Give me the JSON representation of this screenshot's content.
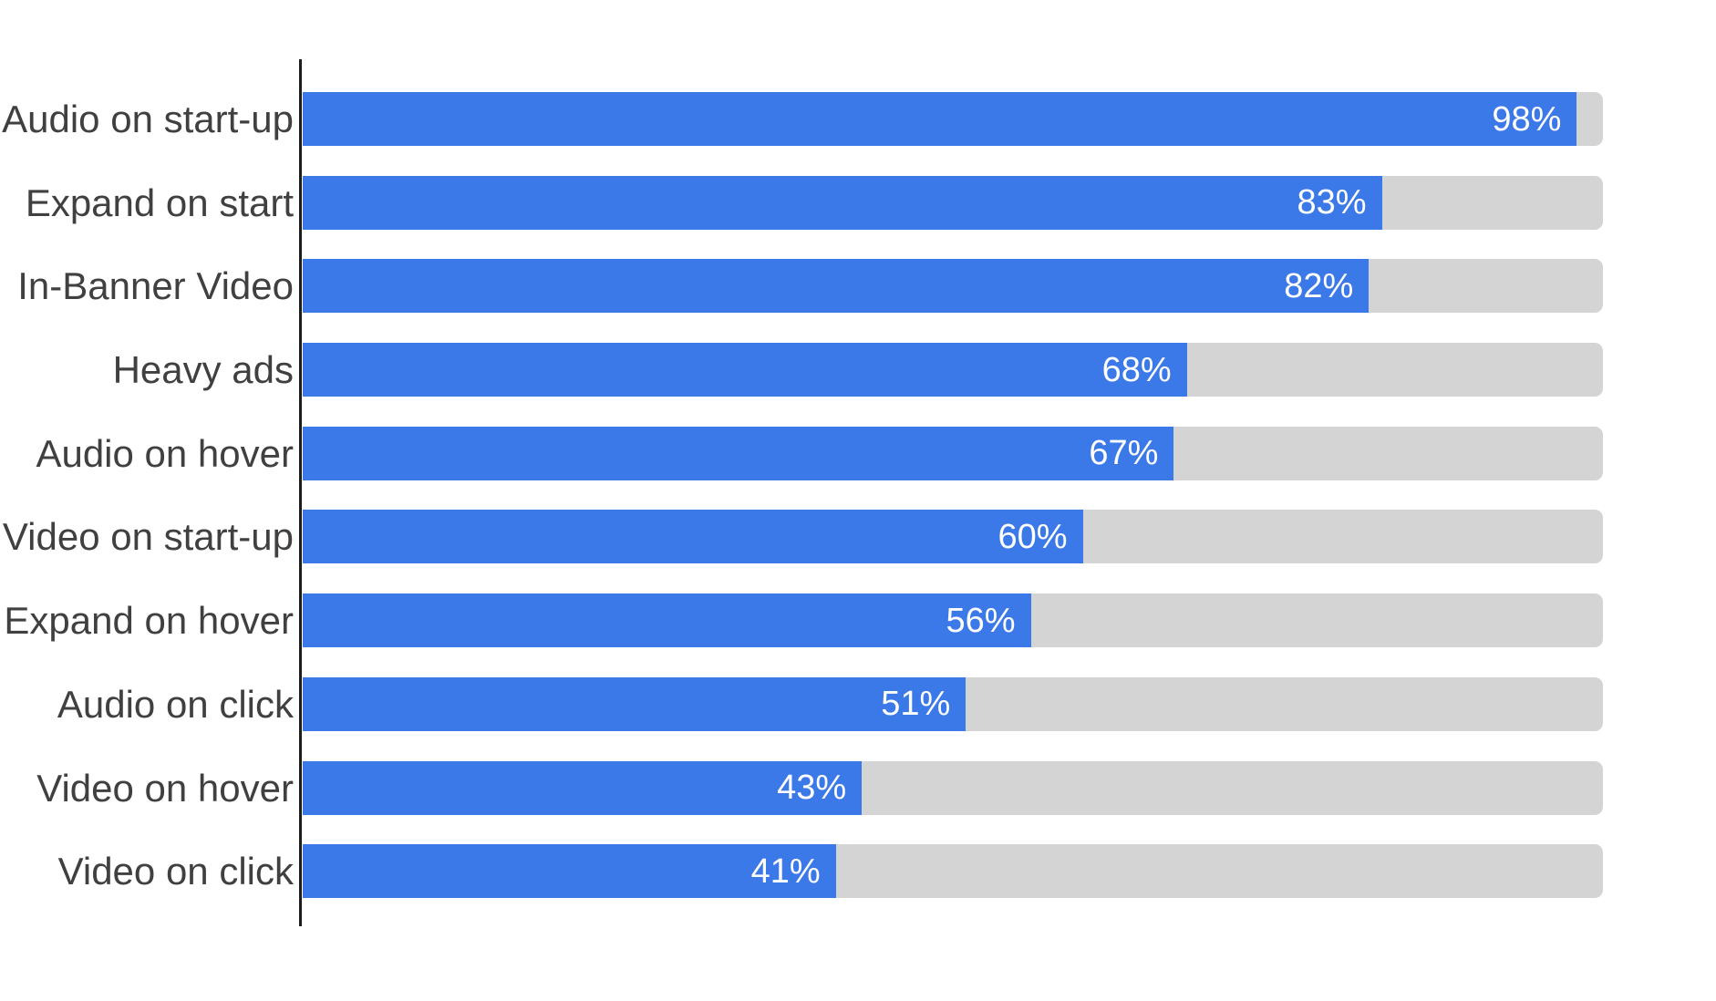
{
  "chart_data": {
    "type": "bar",
    "orientation": "horizontal",
    "title": "",
    "xlabel": "",
    "ylabel": "",
    "xlim": [
      0,
      100
    ],
    "grid": false,
    "legend": false,
    "categories": [
      "Audio on start-up",
      "Expand on start",
      "In-Banner Video",
      "Heavy ads",
      "Audio on hover",
      "Video on start-up",
      "Expand on hover",
      "Audio on click",
      "Video on hover",
      "Video on click"
    ],
    "values": [
      98,
      83,
      82,
      68,
      67,
      60,
      56,
      51,
      43,
      41
    ],
    "value_labels": [
      "98%",
      "83%",
      "82%",
      "68%",
      "67%",
      "60%",
      "56%",
      "51%",
      "43%",
      "41%"
    ],
    "colors": {
      "bar_fill": "#3b78e8",
      "track": "#d4d4d4",
      "axis_line": "#1d1d1d",
      "category_text": "#404040",
      "value_text": "#ffffff",
      "background": "#ffffff"
    }
  }
}
